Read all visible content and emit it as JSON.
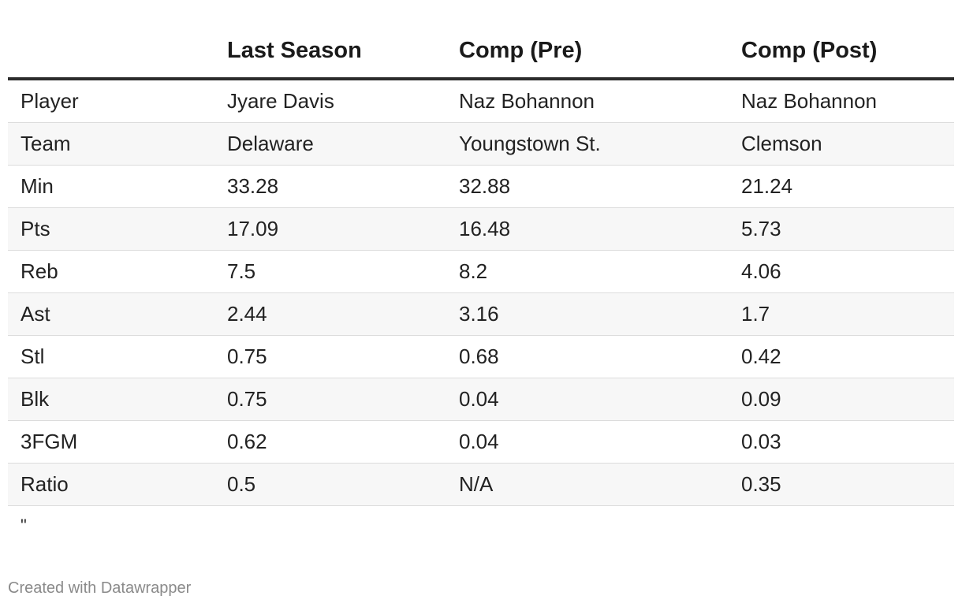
{
  "chart_data": {
    "type": "table",
    "columns": [
      "",
      "Last Season",
      "Comp (Pre)",
      "Comp (Post)"
    ],
    "rows": [
      [
        "Player",
        "Jyare Davis",
        "Naz Bohannon",
        "Naz Bohannon"
      ],
      [
        "Team",
        "Delaware",
        "Youngstown St.",
        "Clemson"
      ],
      [
        "Min",
        "33.28",
        "32.88",
        "21.24"
      ],
      [
        "Pts",
        "17.09",
        "16.48",
        "5.73"
      ],
      [
        "Reb",
        "7.5",
        "8.2",
        "4.06"
      ],
      [
        "Ast",
        "2.44",
        "3.16",
        "1.7"
      ],
      [
        "Stl",
        "0.75",
        "0.68",
        "0.42"
      ],
      [
        "Blk",
        "0.75",
        "0.04",
        "0.09"
      ],
      [
        "3FGM",
        "0.62",
        "0.04",
        "0.03"
      ],
      [
        "Ratio",
        "0.5",
        "N/A",
        "0.35"
      ]
    ],
    "note": "\"",
    "credit": "Created with Datawrapper"
  }
}
